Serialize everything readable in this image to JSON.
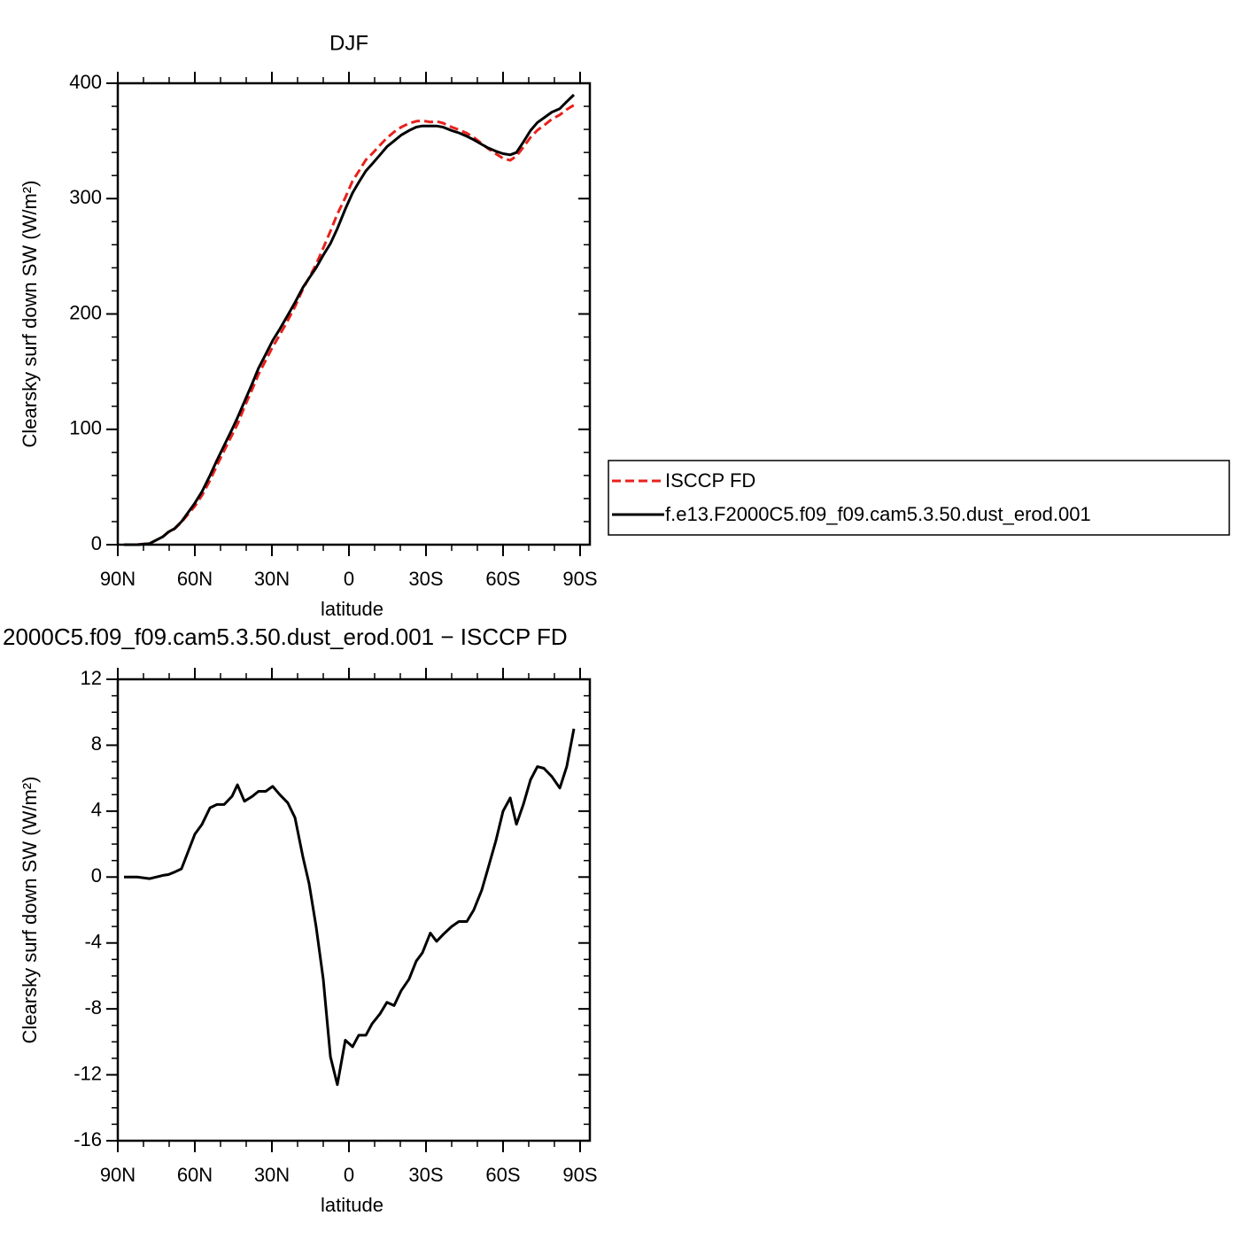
{
  "chart_data": [
    {
      "type": "line",
      "title": "DJF",
      "xlabel": "latitude",
      "ylabel": "Clearsky surf down SW (W/m²)",
      "x": [
        87.6,
        82.4,
        77.6,
        72.4,
        70.3,
        67.9,
        65.2,
        60.0,
        57.2,
        54.1,
        51.4,
        48.6,
        45.5,
        43.4,
        40.7,
        37.6,
        35.2,
        32.4,
        29.7,
        26.9,
        23.8,
        21.0,
        17.9,
        15.5,
        12.8,
        10.0,
        7.2,
        4.5,
        1.4,
        -1.4,
        -3.8,
        -6.6,
        -9.0,
        -12.1,
        -14.8,
        -17.6,
        -20.3,
        -23.4,
        -26.2,
        -28.6,
        -31.7,
        -34.1,
        -36.6,
        -40.0,
        -42.8,
        -45.9,
        -48.6,
        -51.7,
        -54.1,
        -57.2,
        -60.0,
        -62.8,
        -65.2,
        -67.9,
        -70.7,
        -73.4,
        -75.9,
        -79.0,
        -82.1,
        -84.8,
        -87.6
      ],
      "series": [
        {
          "name": "ISCCP FD",
          "color": "#e8211c",
          "dash": true,
          "values": [
            0,
            0,
            1.1,
            6.9,
            10.9,
            13.7,
            19.5,
            33.4,
            42.8,
            55.8,
            68.6,
            81.6,
            95.1,
            104.4,
            119.4,
            135.1,
            147.8,
            159.8,
            171.5,
            182,
            194.5,
            206.4,
            221.8,
            231.4,
            243,
            257.2,
            271.9,
            286.6,
            300.9,
            315.3,
            323.6,
            333.6,
            338.9,
            346.3,
            352.6,
            357.8,
            361.9,
            365.2,
            367.1,
            367.6,
            366.4,
            366.9,
            365.5,
            362,
            359.7,
            356.7,
            353,
            347.8,
            343.5,
            338.8,
            335,
            333.2,
            336.8,
            344.6,
            353.1,
            359.3,
            363.4,
            368.9,
            372.6,
            377.3,
            381
          ]
        },
        {
          "name": "f.e13.F2000C5.f09_f09.cam5.3.50.dust_erod.001",
          "color": "#000000",
          "dash": false,
          "values": [
            0,
            0,
            1,
            7,
            11,
            14,
            20,
            36,
            46,
            60,
            73,
            86,
            100,
            110,
            124,
            140,
            153,
            165,
            177,
            187,
            199,
            210,
            223,
            231,
            240,
            251,
            261,
            274,
            291,
            305,
            314,
            324,
            330,
            338,
            345,
            350,
            355,
            359,
            362,
            363,
            363,
            363,
            362,
            359,
            357,
            354,
            351,
            347,
            344,
            341,
            339,
            338,
            340,
            349,
            359,
            366,
            370,
            375,
            378,
            384,
            390
          ]
        }
      ],
      "xlim": [
        90,
        -93.8
      ],
      "xticks": [
        {
          "value": 90,
          "label": "90N"
        },
        {
          "value": 60,
          "label": "60N"
        },
        {
          "value": 30,
          "label": "30N"
        },
        0,
        {
          "value": -30,
          "label": "30S"
        },
        {
          "value": -60,
          "label": "60S"
        },
        {
          "value": -90,
          "label": "90S"
        }
      ],
      "xminorticks": [
        80,
        70,
        50,
        40,
        20,
        10,
        -10,
        -20,
        -40,
        -50,
        -70,
        -80
      ],
      "ylim": [
        0,
        400
      ],
      "yticks": [
        0,
        100,
        200,
        300,
        400
      ],
      "yminorticks": [
        20,
        40,
        60,
        80,
        120,
        140,
        160,
        180,
        220,
        240,
        260,
        280,
        320,
        340,
        360,
        380
      ],
      "legend": "right"
    },
    {
      "type": "line",
      "title": "2000C5.f09_f09.cam5.3.50.dust_erod.001 − ISCCP FD",
      "xlabel": "latitude",
      "ylabel": "Clearsky surf down SW (W/m²)",
      "x": [
        87.6,
        82.4,
        77.6,
        72.4,
        70.3,
        67.9,
        65.2,
        60.0,
        57.2,
        54.1,
        51.4,
        48.6,
        45.5,
        43.4,
        40.7,
        37.6,
        35.2,
        32.4,
        29.7,
        26.9,
        23.8,
        21.0,
        17.9,
        15.5,
        12.8,
        10.0,
        7.2,
        4.5,
        1.4,
        -1.4,
        -3.8,
        -6.6,
        -9.0,
        -12.1,
        -14.8,
        -17.6,
        -20.3,
        -23.4,
        -26.2,
        -28.6,
        -31.7,
        -34.1,
        -36.6,
        -40.0,
        -42.8,
        -45.9,
        -48.6,
        -51.7,
        -54.1,
        -57.2,
        -60.0,
        -62.8,
        -65.2,
        -67.9,
        -70.7,
        -73.4,
        -75.9,
        -79.0,
        -82.1,
        -84.8,
        -87.6
      ],
      "series": [
        {
          "color": "#000000",
          "dash": false,
          "values": [
            0,
            0,
            -0.1,
            0.1,
            0.15,
            0.3,
            0.5,
            2.6,
            3.2,
            4.2,
            4.4,
            4.4,
            4.9,
            5.6,
            4.6,
            4.9,
            5.2,
            5.2,
            5.5,
            5.0,
            4.5,
            3.6,
            1.2,
            -0.4,
            -3,
            -6.2,
            -10.9,
            -12.6,
            -9.9,
            -10.3,
            -9.6,
            -9.6,
            -8.9,
            -8.3,
            -7.6,
            -7.8,
            -6.9,
            -6.2,
            -5.1,
            -4.6,
            -3.4,
            -3.9,
            -3.5,
            -3.0,
            -2.7,
            -2.7,
            -2.0,
            -0.8,
            0.5,
            2.2,
            4.0,
            4.8,
            3.2,
            4.4,
            5.9,
            6.7,
            6.6,
            6.1,
            5.4,
            6.7,
            9.0
          ]
        }
      ],
      "xlim": [
        90,
        -93.8
      ],
      "xticks": [
        {
          "value": 90,
          "label": "90N"
        },
        {
          "value": 60,
          "label": "60N"
        },
        {
          "value": 30,
          "label": "30N"
        },
        0,
        {
          "value": -30,
          "label": "30S"
        },
        {
          "value": -60,
          "label": "60S"
        },
        {
          "value": -90,
          "label": "90S"
        }
      ],
      "xminorticks": [
        80,
        70,
        50,
        40,
        20,
        10,
        -10,
        -20,
        -40,
        -50,
        -70,
        -80
      ],
      "ylim": [
        -16,
        12
      ],
      "yticks": [
        -16,
        -12,
        -8,
        -4,
        0,
        4,
        8,
        12
      ],
      "yminorticks": [
        -15,
        -14,
        -13,
        -11,
        -10,
        -9,
        -7,
        -6,
        -5,
        -3,
        -2,
        -1,
        1,
        2,
        3,
        5,
        6,
        7,
        9,
        10,
        11
      ]
    }
  ]
}
